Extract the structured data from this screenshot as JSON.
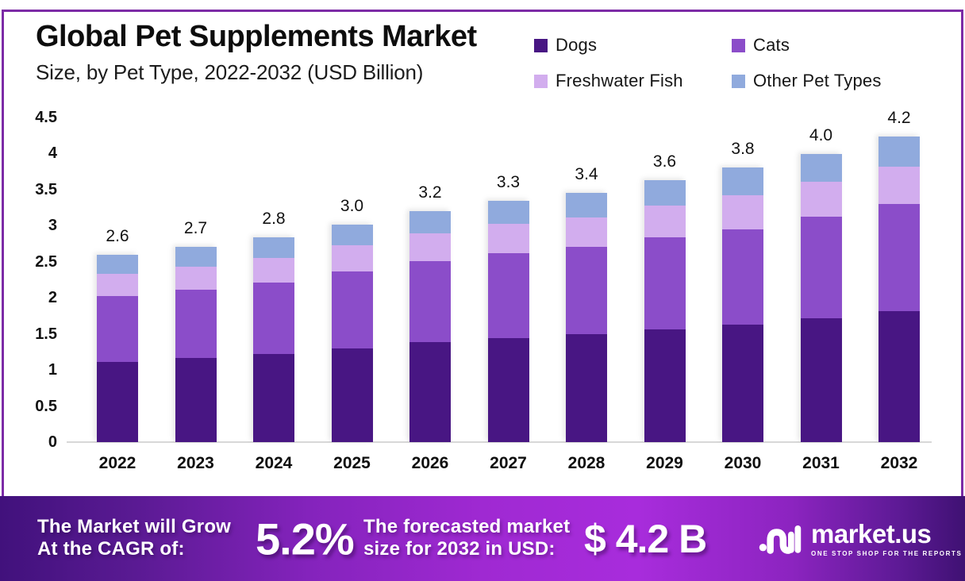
{
  "header": {
    "title": "Global Pet Supplements Market",
    "subtitle": "Size, by Pet Type, 2022-2032 (USD Billion)"
  },
  "legend": {
    "items": [
      {
        "label": "Dogs",
        "color": "#481683"
      },
      {
        "label": "Cats",
        "color": "#8B4DC9"
      },
      {
        "label": "Freshwater Fish",
        "color": "#D2ADEE"
      },
      {
        "label": "Other Pet Types",
        "color": "#90AADD"
      }
    ]
  },
  "chart_data": {
    "type": "bar",
    "stacked": true,
    "title": "Global Pet Supplements Market Size, by Pet Type, 2022-2032 (USD Billion)",
    "xlabel": "",
    "ylabel": "USD Billion",
    "categories": [
      "2022",
      "2023",
      "2024",
      "2025",
      "2026",
      "2027",
      "2028",
      "2029",
      "2030",
      "2031",
      "2032"
    ],
    "series": [
      {
        "name": "Dogs",
        "color": "#481683",
        "values": [
          1.11,
          1.16,
          1.22,
          1.3,
          1.38,
          1.44,
          1.49,
          1.56,
          1.63,
          1.71,
          1.81
        ]
      },
      {
        "name": "Cats",
        "color": "#8B4DC9",
        "values": [
          0.91,
          0.95,
          0.99,
          1.06,
          1.12,
          1.17,
          1.21,
          1.28,
          1.32,
          1.41,
          1.49
        ]
      },
      {
        "name": "Freshwater Fish",
        "color": "#D2ADEE",
        "values": [
          0.31,
          0.32,
          0.34,
          0.36,
          0.39,
          0.41,
          0.41,
          0.43,
          0.47,
          0.48,
          0.51
        ]
      },
      {
        "name": "Other Pet Types",
        "color": "#90AADD",
        "values": [
          0.26,
          0.27,
          0.28,
          0.29,
          0.31,
          0.32,
          0.34,
          0.36,
          0.38,
          0.39,
          0.42
        ]
      }
    ],
    "totals": [
      2.6,
      2.7,
      2.8,
      3.0,
      3.2,
      3.3,
      3.4,
      3.6,
      3.8,
      4.0,
      4.2
    ],
    "totals_display": [
      "2.6",
      "2.7",
      "2.8",
      "3.0",
      "3.2",
      "3.3",
      "3.4",
      "3.6",
      "3.8",
      "4.0",
      "4.2"
    ],
    "y_axis": {
      "min": 0,
      "max": 4.5,
      "ticks": [
        "0",
        "0.5",
        "1",
        "1.5",
        "2",
        "2.5",
        "3",
        "3.5",
        "4",
        "4.5"
      ]
    },
    "grid": false,
    "legend_position": "top-right"
  },
  "banner": {
    "cagr_label_line1": "The Market will Grow",
    "cagr_label_line2": "At the CAGR of:",
    "cagr_value": "5.2%",
    "forecast_label_line1": "The forecasted market",
    "forecast_label_line2": "size for 2032 in USD:",
    "forecast_value": "$ 4.2 B",
    "logo": {
      "name": "market.us",
      "tagline": "ONE STOP SHOP FOR THE REPORTS"
    }
  },
  "colors": {
    "frame_border": "#7C2BA6",
    "banner_gradient_start": "#41117C",
    "banner_gradient_mid": "#A82CDC",
    "banner_gradient_end": "#3F1173",
    "axis_line": "#D8D8D8",
    "text": "#111111"
  }
}
